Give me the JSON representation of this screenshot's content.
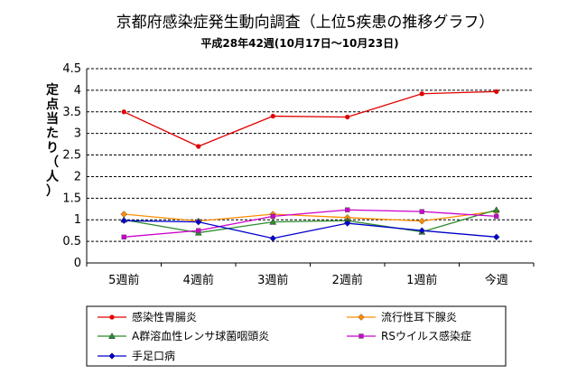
{
  "chart_data": {
    "type": "line",
    "title": "京都府感染症発生動向調査（上位5疾患の推移グラフ）",
    "subtitle": "平成28年42週(10月17日～10月23日)",
    "xlabel": "",
    "ylabel": "定点当たり（人）",
    "categories": [
      "5週前",
      "4週前",
      "3週前",
      "2週前",
      "1週前",
      "今週"
    ],
    "ylim": [
      0,
      4.5
    ],
    "yticks": [
      "0",
      "0.5",
      "1",
      "1.5",
      "2",
      "2.5",
      "3",
      "3.5",
      "4",
      "4.5"
    ],
    "grid": true,
    "legend_position": "bottom",
    "series": [
      {
        "name": "感染性胃腸炎",
        "color": "#e00000",
        "marker": "circle",
        "values": [
          3.5,
          2.7,
          3.4,
          3.38,
          3.92,
          3.97
        ]
      },
      {
        "name": "流行性耳下腺炎",
        "color": "#ff8c00",
        "marker": "diamond",
        "values": [
          1.13,
          0.97,
          1.13,
          1.05,
          0.97,
          1.2
        ]
      },
      {
        "name": "A群溶血性レンサ球菌咽頭炎",
        "color": "#2e8b2e",
        "marker": "triangle",
        "values": [
          1.0,
          0.7,
          0.95,
          0.98,
          0.72,
          1.23
        ]
      },
      {
        "name": "RSウイルス感染症",
        "color": "#cc00cc",
        "marker": "square",
        "values": [
          0.6,
          0.75,
          1.08,
          1.23,
          1.19,
          1.08
        ]
      },
      {
        "name": "手足口病",
        "color": "#0000cc",
        "marker": "diamond",
        "values": [
          0.98,
          0.95,
          0.57,
          0.92,
          0.75,
          0.6
        ]
      }
    ]
  }
}
